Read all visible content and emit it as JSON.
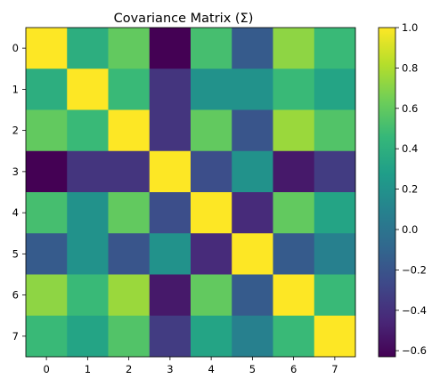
{
  "chart_data": {
    "type": "heatmap",
    "title": "Covariance Matrix (Σ)",
    "xlabel": "",
    "ylabel": "",
    "x_categories": [
      "0",
      "1",
      "2",
      "3",
      "4",
      "5",
      "6",
      "7"
    ],
    "y_categories": [
      "0",
      "1",
      "2",
      "3",
      "4",
      "5",
      "6",
      "7"
    ],
    "values": [
      [
        1.0,
        0.39,
        0.6,
        -0.63,
        0.51,
        -0.16,
        0.72,
        0.47
      ],
      [
        0.39,
        1.0,
        0.47,
        -0.38,
        0.2,
        0.2,
        0.47,
        0.32
      ],
      [
        0.6,
        0.47,
        1.0,
        -0.38,
        0.6,
        -0.2,
        0.75,
        0.55
      ],
      [
        -0.63,
        -0.38,
        -0.38,
        1.0,
        -0.24,
        0.2,
        -0.52,
        -0.34
      ],
      [
        0.51,
        0.2,
        0.6,
        -0.24,
        1.0,
        -0.43,
        0.6,
        0.32
      ],
      [
        -0.16,
        0.2,
        -0.2,
        0.2,
        -0.43,
        1.0,
        -0.16,
        0.08
      ],
      [
        0.72,
        0.47,
        0.75,
        -0.52,
        0.6,
        -0.16,
        1.0,
        0.47
      ],
      [
        0.47,
        0.32,
        0.55,
        -0.34,
        0.32,
        0.08,
        0.47,
        1.0
      ]
    ],
    "colormap": "viridis",
    "colorbar": {
      "vmin": -0.63,
      "vmax": 1.0,
      "ticks": [
        1.0,
        0.8,
        0.6,
        0.4,
        0.2,
        0.0,
        -0.2,
        -0.4,
        -0.6
      ],
      "tick_labels": [
        "1.0",
        "0.8",
        "0.6",
        "0.4",
        "0.2",
        "0.0",
        "−0.2",
        "−0.4",
        "−0.6"
      ]
    }
  }
}
